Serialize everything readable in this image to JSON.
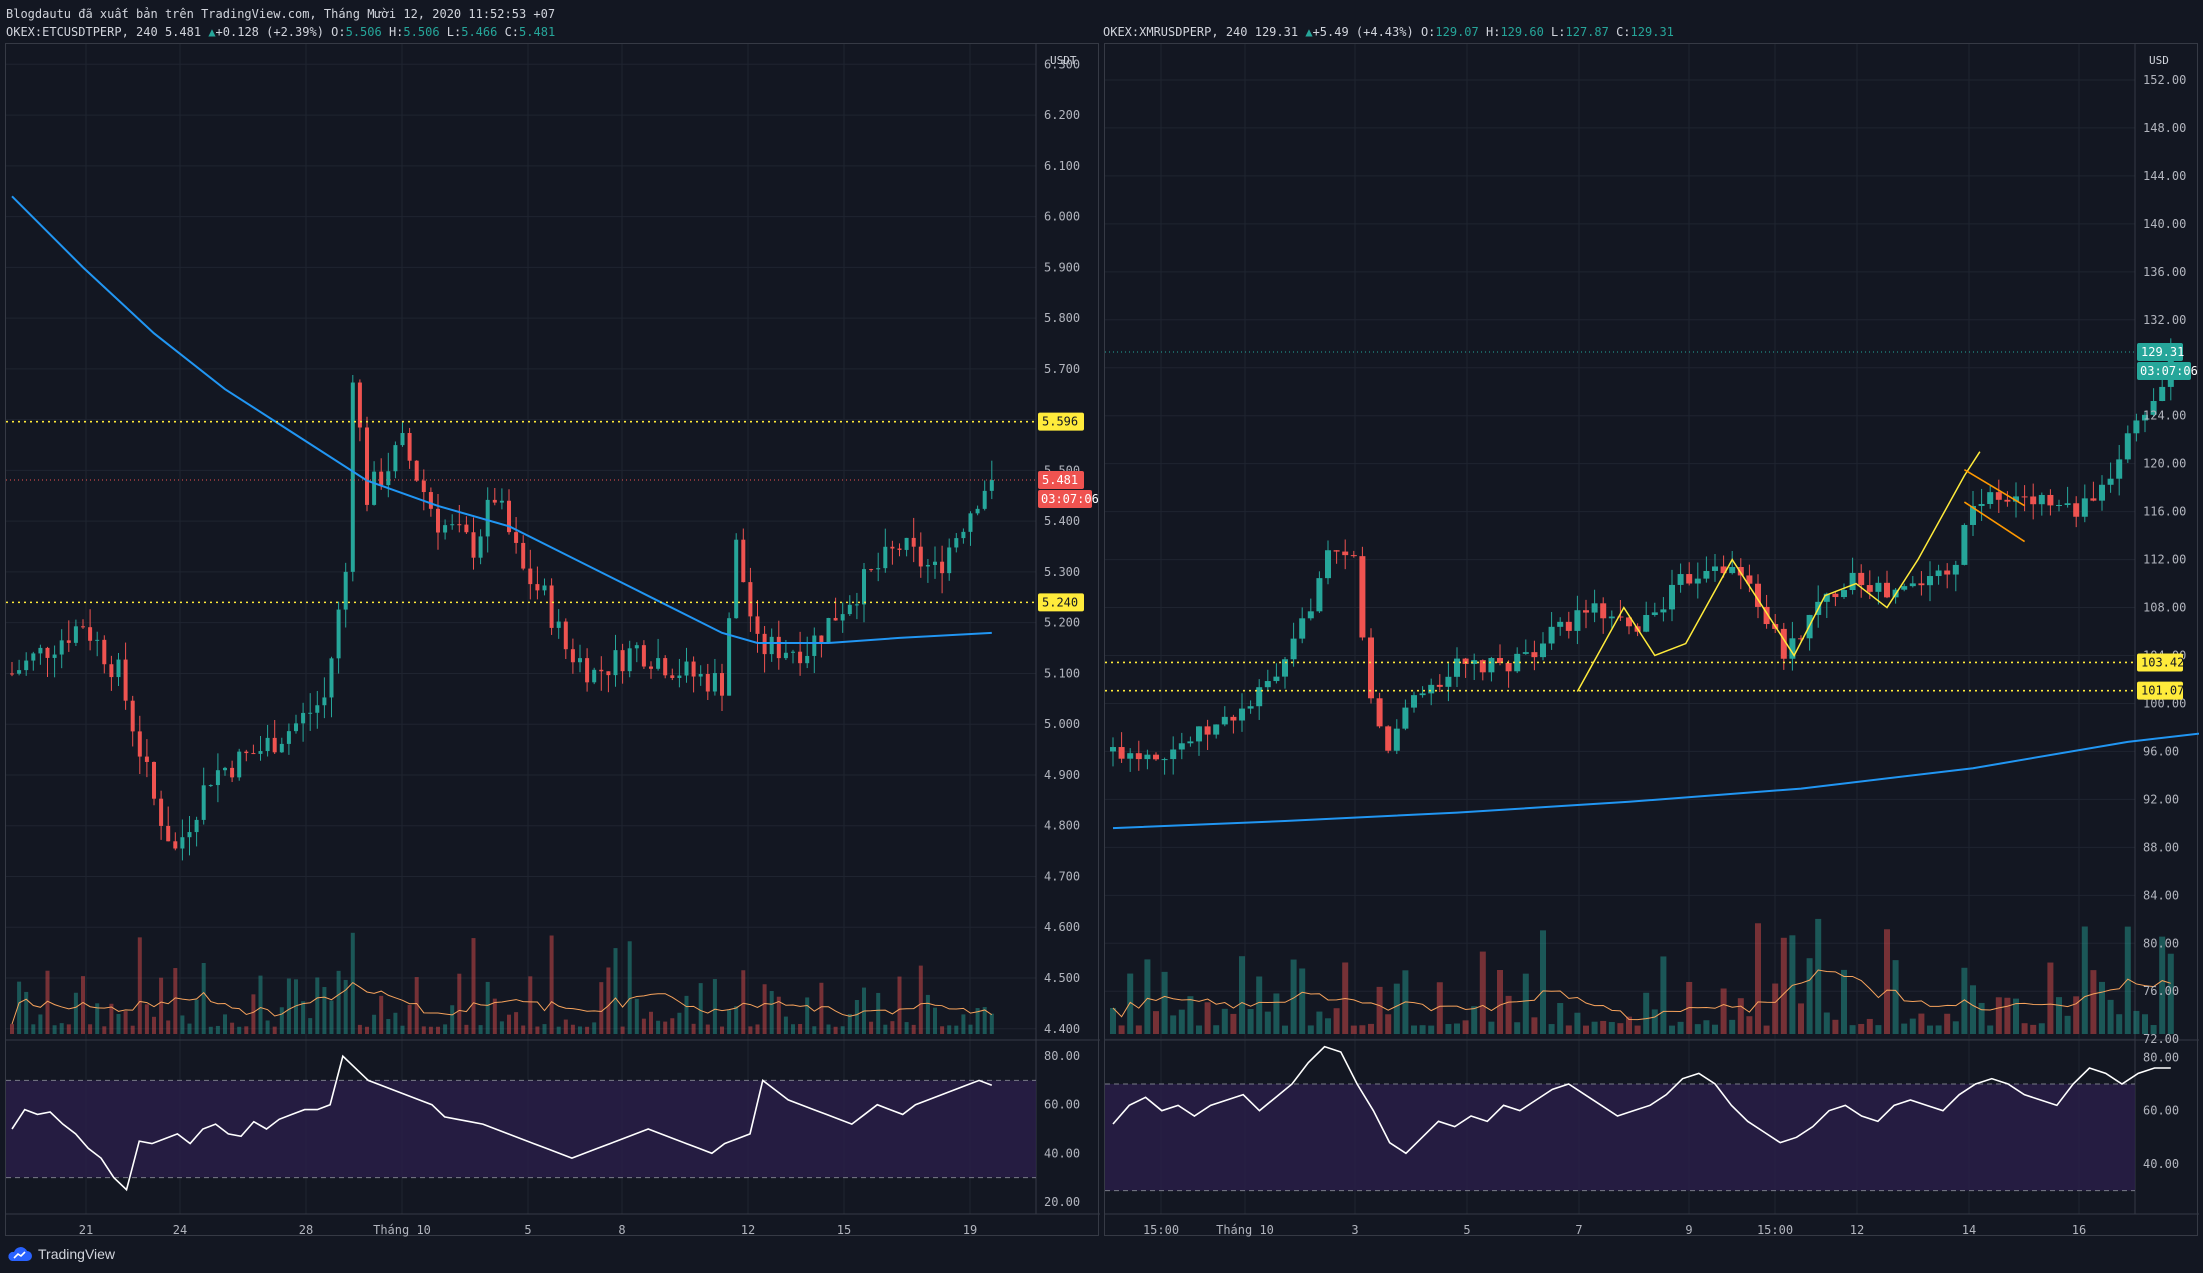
{
  "header": {
    "publisher_line": "Blogdautu đã xuất bản trên TradingView.com, Tháng Mười 12, 2020 11:52:53 +07"
  },
  "left": {
    "symbol": "OKEX:ETCUSDTPERP, 240",
    "last": "5.481",
    "change": "+0.128 (+2.39%)",
    "O": "5.506",
    "H": "5.506",
    "L": "5.466",
    "C": "5.481",
    "currency": "USDT",
    "price_ticks": [
      "6.300",
      "6.200",
      "6.100",
      "6.000",
      "5.900",
      "5.800",
      "5.700",
      "5.600",
      "5.500",
      "5.400",
      "5.300",
      "5.200",
      "5.100",
      "5.000",
      "4.900",
      "4.800",
      "4.700",
      "4.600",
      "4.500",
      "4.400"
    ],
    "labels": {
      "res": "5.596",
      "sup": "5.240",
      "price": "5.481",
      "timer": "03:07:06"
    },
    "rsi_ticks": [
      "80.00",
      "60.00",
      "40.00",
      "20.00"
    ],
    "x_ticks": [
      "21",
      "24",
      "28",
      "Tháng 10",
      "5",
      "8",
      "12",
      "15",
      "19"
    ]
  },
  "right": {
    "symbol": "OKEX:XMRUSDPERP, 240",
    "last": "129.31",
    "change": "+5.49 (+4.43%)",
    "O": "129.07",
    "H": "129.60",
    "L": "127.87",
    "C": "129.31",
    "currency": "USD",
    "price_ticks": [
      "152.00",
      "148.00",
      "144.00",
      "140.00",
      "136.00",
      "132.00",
      "128.00",
      "124.00",
      "120.00",
      "116.00",
      "112.00",
      "108.00",
      "104.00",
      "100.00",
      "96.00",
      "92.00",
      "88.00",
      "84.00",
      "80.00",
      "76.00",
      "72.00"
    ],
    "labels": {
      "lvl1": "103.42",
      "lvl2": "101.07",
      "price": "129.31",
      "timer": "03:07:06"
    },
    "rsi_ticks": [
      "80.00",
      "60.00",
      "40.00"
    ],
    "x_ticks": [
      "15:00",
      "Tháng 10",
      "3",
      "5",
      "7",
      "9",
      "15:00",
      "12",
      "14",
      "16"
    ]
  },
  "footer": {
    "brand": "TradingView"
  },
  "colors": {
    "bg": "#131722",
    "up": "#26a69a",
    "down": "#ef5350",
    "ma": "#2196f3",
    "level": "#ffeb3b",
    "rsi": "#ffffff",
    "rsi_band": "#2a1e4a"
  },
  "chart_data": [
    {
      "type": "candlestick",
      "title": "OKEX:ETCUSDTPERP, 240",
      "ylim": [
        4.37,
        6.34
      ],
      "horizontal_levels": [
        5.596,
        5.24
      ],
      "last_price": 5.481,
      "approx_path": [
        [
          0,
          5.1
        ],
        [
          10,
          5.2
        ],
        [
          15,
          5.1
        ],
        [
          20,
          4.85
        ],
        [
          23,
          4.75
        ],
        [
          28,
          4.9
        ],
        [
          35,
          4.95
        ],
        [
          40,
          5.0
        ],
        [
          44,
          5.05
        ],
        [
          47,
          5.3
        ],
        [
          48,
          5.7
        ],
        [
          50,
          5.45
        ],
        [
          55,
          5.55
        ],
        [
          60,
          5.4
        ],
        [
          65,
          5.35
        ],
        [
          68,
          5.45
        ],
        [
          72,
          5.3
        ],
        [
          75,
          5.25
        ],
        [
          78,
          5.15
        ],
        [
          82,
          5.1
        ],
        [
          88,
          5.15
        ],
        [
          95,
          5.1
        ],
        [
          100,
          5.08
        ],
        [
          102,
          5.35
        ],
        [
          105,
          5.15
        ],
        [
          112,
          5.15
        ],
        [
          118,
          5.25
        ],
        [
          125,
          5.35
        ],
        [
          130,
          5.3
        ],
        [
          136,
          5.45
        ],
        [
          138,
          5.49
        ]
      ],
      "ma_line": [
        [
          0,
          6.04
        ],
        [
          10,
          5.9
        ],
        [
          20,
          5.77
        ],
        [
          30,
          5.66
        ],
        [
          40,
          5.57
        ],
        [
          50,
          5.48
        ],
        [
          60,
          5.43
        ],
        [
          70,
          5.39
        ],
        [
          80,
          5.32
        ],
        [
          90,
          5.25
        ],
        [
          100,
          5.18
        ],
        [
          105,
          5.16
        ],
        [
          115,
          5.16
        ],
        [
          125,
          5.17
        ],
        [
          138,
          5.18
        ]
      ],
      "rsi": {
        "ylim": [
          15,
          85
        ],
        "upper": 70,
        "lower": 30,
        "values": [
          50,
          58,
          56,
          57,
          52,
          48,
          42,
          38,
          30,
          25,
          45,
          44,
          46,
          48,
          44,
          50,
          52,
          48,
          47,
          53,
          50,
          54,
          56,
          58,
          58,
          60,
          80,
          75,
          70,
          68,
          66,
          64,
          62,
          60,
          55,
          54,
          53,
          52,
          50,
          48,
          46,
          44,
          42,
          40,
          38,
          40,
          42,
          44,
          46,
          48,
          50,
          48,
          46,
          44,
          42,
          40,
          44,
          46,
          48,
          70,
          66,
          62,
          60,
          58,
          56,
          54,
          52,
          56,
          60,
          58,
          56,
          60,
          62,
          64,
          66,
          68,
          70,
          68
        ]
      }
    },
    {
      "type": "candlestick",
      "title": "OKEX:XMRUSDPERP, 240",
      "ylim": [
        71.6,
        155
      ],
      "horizontal_levels": [
        103.42,
        101.07
      ],
      "last_price": 129.31,
      "approx_path": [
        [
          0,
          96
        ],
        [
          6,
          96
        ],
        [
          12,
          98
        ],
        [
          16,
          100
        ],
        [
          20,
          103
        ],
        [
          25,
          112
        ],
        [
          28,
          112
        ],
        [
          30,
          100
        ],
        [
          32,
          96
        ],
        [
          34,
          100
        ],
        [
          40,
          103
        ],
        [
          45,
          103
        ],
        [
          50,
          105
        ],
        [
          55,
          108
        ],
        [
          60,
          106
        ],
        [
          62,
          107
        ],
        [
          66,
          110
        ],
        [
          70,
          112
        ],
        [
          74,
          110
        ],
        [
          78,
          104
        ],
        [
          82,
          108
        ],
        [
          86,
          111
        ],
        [
          90,
          109
        ],
        [
          94,
          110
        ],
        [
          98,
          112
        ],
        [
          100,
          117
        ],
        [
          104,
          117
        ],
        [
          108,
          117
        ],
        [
          112,
          116
        ],
        [
          116,
          118
        ],
        [
          118,
          123
        ],
        [
          121,
          125
        ],
        [
          123,
          129.31
        ]
      ],
      "ma_line": [
        [
          0,
          89.6
        ],
        [
          20,
          90.2
        ],
        [
          40,
          90.9
        ],
        [
          60,
          91.8
        ],
        [
          80,
          92.9
        ],
        [
          100,
          94.6
        ],
        [
          118,
          96.8
        ],
        [
          130,
          97.8
        ]
      ],
      "rsi": {
        "ylim": [
          25,
          85
        ],
        "upper": 70,
        "lower": 30,
        "values": [
          55,
          62,
          65,
          60,
          62,
          58,
          62,
          64,
          66,
          60,
          65,
          70,
          78,
          84,
          82,
          70,
          60,
          48,
          44,
          50,
          56,
          54,
          58,
          56,
          62,
          60,
          64,
          68,
          70,
          66,
          62,
          58,
          60,
          62,
          66,
          72,
          74,
          70,
          62,
          56,
          52,
          48,
          50,
          54,
          60,
          62,
          58,
          56,
          62,
          64,
          62,
          60,
          66,
          70,
          72,
          70,
          66,
          64,
          62,
          70,
          76,
          74,
          70,
          74,
          76,
          76
        ]
      }
    }
  ]
}
